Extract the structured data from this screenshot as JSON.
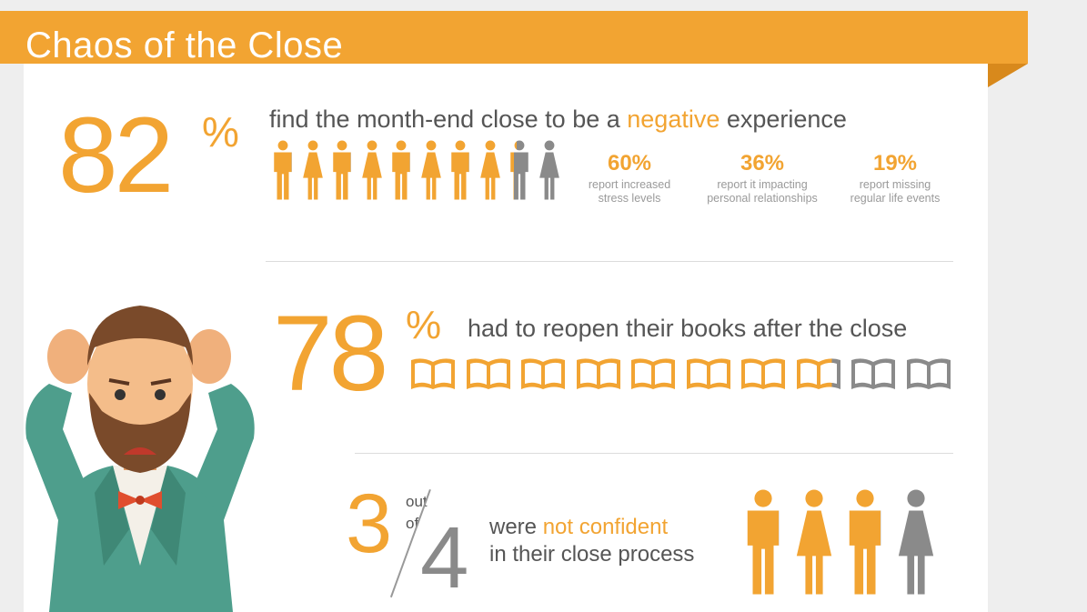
{
  "header": {
    "title": "Chaos of the Close"
  },
  "section1": {
    "big_number": "82",
    "percent_sign": "%",
    "headline_pre": "find the month-end close to be a ",
    "headline_highlight": "negative",
    "headline_post": " experience",
    "people_icons": {
      "total": 10,
      "filled_fraction": 0.82,
      "pattern": [
        "man",
        "woman",
        "man",
        "woman",
        "man",
        "woman",
        "man",
        "woman",
        "man",
        "woman"
      ]
    },
    "stats": [
      {
        "value": "60%",
        "line1": "report increased",
        "line2": "stress levels"
      },
      {
        "value": "36%",
        "line1": "report it impacting",
        "line2": "personal relationships"
      },
      {
        "value": "19%",
        "line1": "report missing",
        "line2": "regular life events"
      }
    ]
  },
  "section2": {
    "big_number": "78",
    "percent_sign": "%",
    "headline": "had to reopen their books after the close",
    "book_icons": {
      "total": 10,
      "filled_fraction": 0.78
    }
  },
  "section3": {
    "numerator": "3",
    "out_label": "out",
    "of_label": "of",
    "denominator": "4",
    "headline_pre": "were ",
    "headline_highlight": "not confident",
    "headline_line2": "in their close process",
    "people_icons": {
      "total": 4,
      "filled": 3,
      "pattern": [
        "man",
        "woman",
        "man",
        "woman"
      ]
    }
  },
  "illustration": {
    "icon": "stressed-man-illustration"
  },
  "colors": {
    "accent": "#f2a432",
    "accent_dark": "#d8891c",
    "muted": "#8a8a8a",
    "text": "#555555"
  }
}
